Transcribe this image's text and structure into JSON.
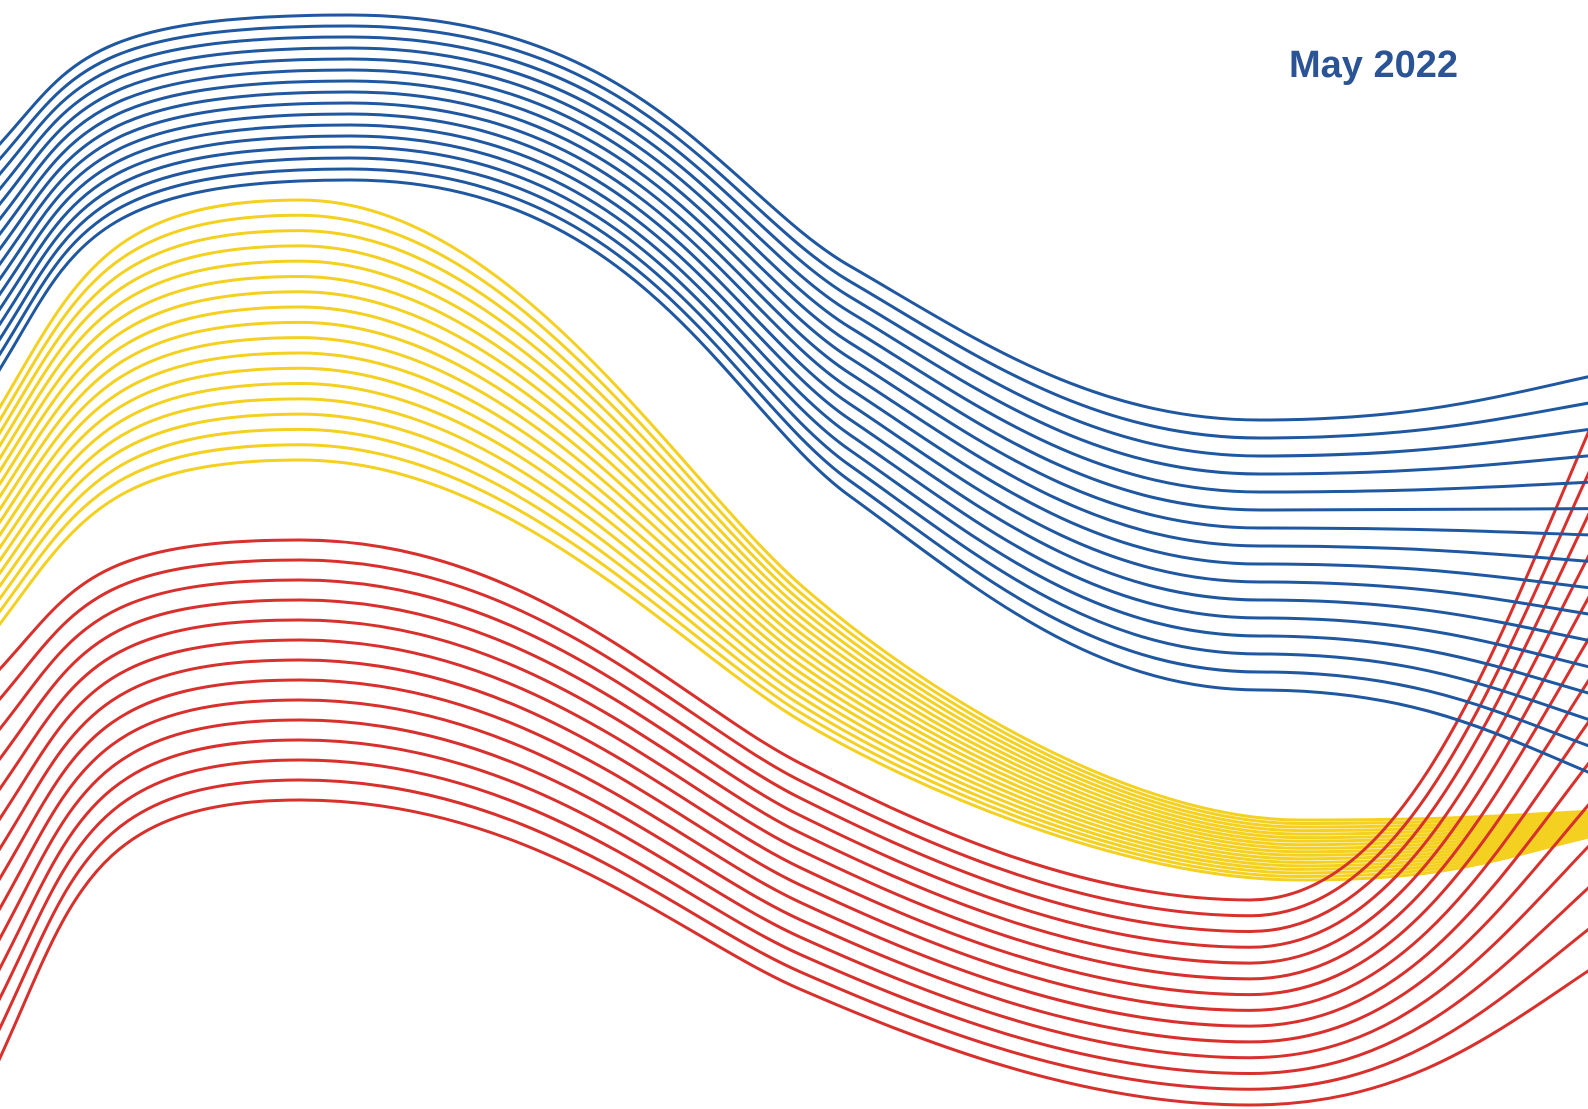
{
  "cover": {
    "date": "May 2022",
    "date_color": "#2b5496"
  },
  "waves": {
    "groups": [
      {
        "name": "blue-band",
        "color": "#1f57a0",
        "line_count": 16
      },
      {
        "name": "yellow-band",
        "color": "#f4d021",
        "line_count": 18
      },
      {
        "name": "red-band",
        "color": "#d8302c",
        "line_count": 14
      }
    ]
  }
}
